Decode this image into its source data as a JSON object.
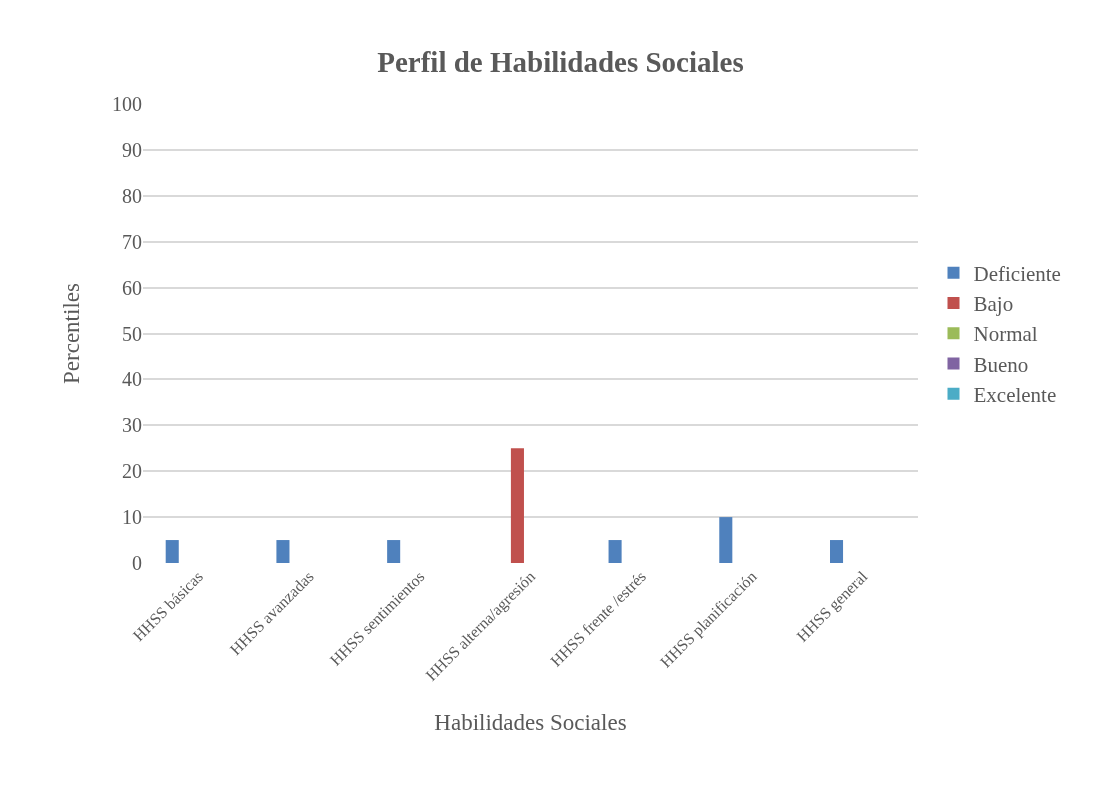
{
  "chart_data": {
    "type": "bar",
    "title": "Perfil de Habilidades Sociales",
    "xlabel": "Habilidades Sociales",
    "ylabel": "Percentiles",
    "categories": [
      "HHSS básicas",
      "HHSS avanzadas",
      "HHSS sentimientos",
      "HHSS alterna/agresión",
      "HHSS frente /estrés",
      "HHSS planificación",
      "HHSS general"
    ],
    "series": [
      {
        "name": "Deficiente",
        "color": "#4f81bd",
        "values": [
          5,
          5,
          5,
          null,
          5,
          10,
          5
        ]
      },
      {
        "name": "Bajo",
        "color": "#c0504d",
        "values": [
          null,
          null,
          null,
          25,
          null,
          null,
          null
        ]
      },
      {
        "name": "Normal",
        "color": "#9bbb59",
        "values": [
          null,
          null,
          null,
          null,
          null,
          null,
          null
        ]
      },
      {
        "name": "Bueno",
        "color": "#8064a2",
        "values": [
          null,
          null,
          null,
          null,
          null,
          null,
          null
        ]
      },
      {
        "name": "Excelente",
        "color": "#4bacc6",
        "values": [
          null,
          null,
          null,
          null,
          null,
          null,
          null
        ]
      }
    ],
    "ylim": [
      0,
      100
    ],
    "yticks": [
      0,
      10,
      20,
      30,
      40,
      50,
      60,
      70,
      80,
      90,
      100
    ],
    "grid": "y",
    "legend": "right"
  }
}
